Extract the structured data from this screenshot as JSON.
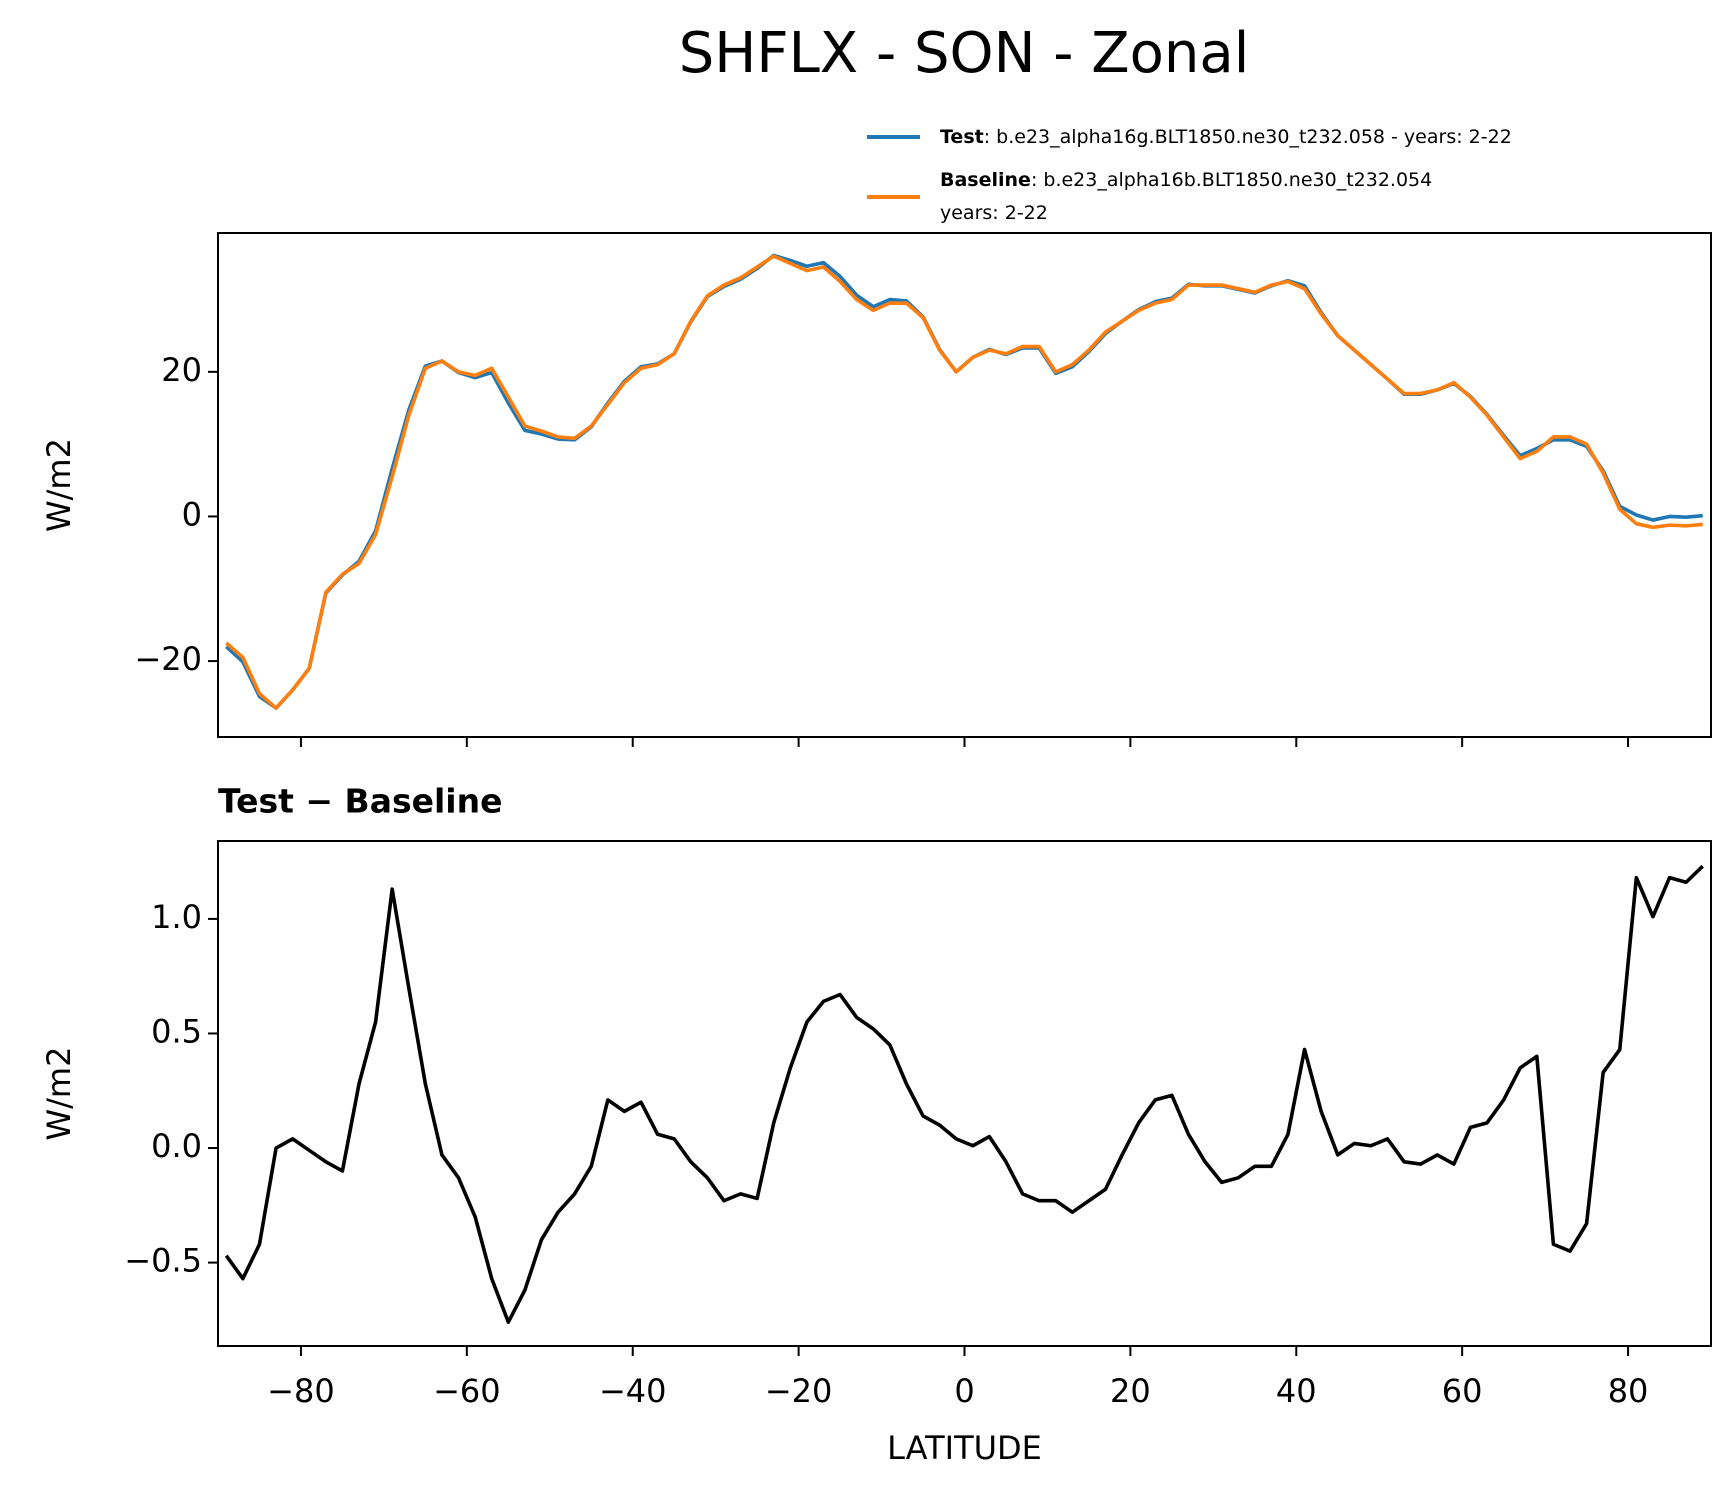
{
  "title": "SHFLX - SON - Zonal",
  "chart_data": [
    {
      "type": "line",
      "x": [
        -89,
        -87,
        -85,
        -83,
        -81,
        -79,
        -77,
        -75,
        -73,
        -71,
        -69,
        -67,
        -65,
        -63,
        -61,
        -59,
        -57,
        -55,
        -53,
        -51,
        -49,
        -47,
        -45,
        -43,
        -41,
        -39,
        -37,
        -35,
        -33,
        -31,
        -29,
        -27,
        -25,
        -23,
        -21,
        -19,
        -17,
        -15,
        -13,
        -11,
        -9,
        -7,
        -5,
        -3,
        -1,
        1,
        3,
        5,
        7,
        9,
        11,
        13,
        15,
        17,
        19,
        21,
        23,
        25,
        27,
        29,
        31,
        33,
        35,
        37,
        39,
        41,
        43,
        45,
        47,
        49,
        51,
        53,
        55,
        57,
        59,
        61,
        63,
        65,
        67,
        69,
        71,
        73,
        75,
        77,
        79,
        81,
        83,
        85,
        87,
        89
      ],
      "series": [
        {
          "name": "Test",
          "description": [
            ": b.e23_alpha16g.BLT1850.ne30_t232.058 - years: 2-22"
          ],
          "color": "#1f77b4",
          "values": [
            -18.0,
            -20.1,
            -24.9,
            -26.5,
            -24.0,
            -21.0,
            -10.6,
            -8.1,
            -6.2,
            -2.0,
            6.6,
            14.7,
            20.8,
            21.5,
            19.9,
            19.2,
            19.9,
            15.7,
            11.9,
            11.4,
            10.7,
            10.6,
            12.4,
            15.7,
            18.7,
            20.7,
            21.1,
            22.5,
            26.9,
            30.4,
            31.8,
            32.8,
            34.3,
            36.1,
            35.4,
            34.6,
            35.1,
            33.2,
            30.6,
            29.0,
            30.0,
            29.8,
            27.6,
            23.1,
            20.0,
            22.0,
            23.1,
            22.4,
            23.3,
            23.3,
            19.8,
            20.7,
            22.8,
            25.3,
            27.0,
            28.6,
            29.7,
            30.2,
            32.1,
            31.9,
            31.9,
            31.4,
            30.9,
            31.9,
            32.6,
            31.9,
            28.2,
            25.0,
            23.0,
            21.0,
            19.0,
            16.9,
            16.9,
            17.5,
            18.4,
            16.6,
            14.1,
            11.2,
            8.4,
            9.4,
            10.6,
            10.6,
            9.7,
            6.3,
            1.4,
            0.2,
            -0.5,
            0.0,
            -0.1,
            0.1
          ]
        },
        {
          "name": "Baseline",
          "description": [
            ": b.e23_alpha16b.BLT1850.ne30_t232.054",
            "years: 2-22"
          ],
          "color": "#ff7f0e",
          "values": [
            -17.5,
            -19.5,
            -24.5,
            -26.5,
            -24.0,
            -21.0,
            -10.5,
            -8.0,
            -6.5,
            -2.5,
            5.5,
            14.0,
            20.5,
            21.5,
            20.0,
            19.5,
            20.5,
            16.5,
            12.5,
            11.8,
            11.0,
            10.8,
            12.5,
            15.5,
            18.5,
            20.5,
            21.0,
            22.5,
            27.0,
            30.5,
            32.0,
            33.0,
            34.5,
            36.0,
            35.0,
            34.0,
            34.5,
            32.5,
            30.0,
            28.5,
            29.5,
            29.5,
            27.5,
            23.0,
            20.0,
            22.0,
            23.0,
            22.5,
            23.5,
            23.5,
            20.0,
            21.0,
            23.0,
            25.5,
            27.0,
            28.5,
            29.5,
            30.0,
            32.0,
            32.0,
            32.0,
            31.5,
            31.0,
            32.0,
            32.5,
            31.5,
            28.0,
            25.0,
            23.0,
            21.0,
            19.0,
            17.0,
            17.0,
            17.5,
            18.5,
            16.5,
            14.0,
            11.0,
            8.0,
            9.0,
            11.0,
            11.0,
            10.0,
            6.0,
            1.0,
            -1.0,
            -1.5,
            -1.2,
            -1.3,
            -1.1
          ]
        }
      ],
      "ylabel": "W/m2",
      "xlim": [
        -90,
        90
      ],
      "ylim": [
        -30.5,
        39.2
      ],
      "xticks": [
        -80,
        -60,
        -40,
        -20,
        0,
        20,
        40,
        60,
        80
      ],
      "show_xtick_labels": false,
      "yticks": [
        {
          "value": -20,
          "label": "−20"
        },
        0,
        20
      ],
      "legend": "upper right outside"
    },
    {
      "type": "line",
      "title": "Test − Baseline",
      "x": [
        -89,
        -87,
        -85,
        -83,
        -81,
        -79,
        -77,
        -75,
        -73,
        -71,
        -69,
        -67,
        -65,
        -63,
        -61,
        -59,
        -57,
        -55,
        -53,
        -51,
        -49,
        -47,
        -45,
        -43,
        -41,
        -39,
        -37,
        -35,
        -33,
        -31,
        -29,
        -27,
        -25,
        -23,
        -21,
        -19,
        -17,
        -15,
        -13,
        -11,
        -9,
        -7,
        -5,
        -3,
        -1,
        1,
        3,
        5,
        7,
        9,
        11,
        13,
        15,
        17,
        19,
        21,
        23,
        25,
        27,
        29,
        31,
        33,
        35,
        37,
        39,
        41,
        43,
        45,
        47,
        49,
        51,
        53,
        55,
        57,
        59,
        61,
        63,
        65,
        67,
        69,
        71,
        73,
        75,
        77,
        79,
        81,
        83,
        85,
        87,
        89
      ],
      "series": [
        {
          "color": "#000000",
          "values": [
            -0.47,
            -0.57,
            -0.42,
            0.0,
            0.04,
            -0.01,
            -0.06,
            -0.1,
            0.28,
            0.55,
            1.13,
            0.7,
            0.28,
            -0.03,
            -0.13,
            -0.3,
            -0.57,
            -0.76,
            -0.62,
            -0.4,
            -0.28,
            -0.2,
            -0.08,
            0.21,
            0.16,
            0.2,
            0.06,
            0.04,
            -0.06,
            -0.13,
            -0.23,
            -0.2,
            -0.22,
            0.11,
            0.35,
            0.55,
            0.64,
            0.67,
            0.57,
            0.52,
            0.45,
            0.28,
            0.14,
            0.1,
            0.04,
            0.01,
            0.05,
            -0.06,
            -0.2,
            -0.23,
            -0.23,
            -0.28,
            -0.23,
            -0.18,
            -0.03,
            0.11,
            0.21,
            0.23,
            0.06,
            -0.06,
            -0.15,
            -0.13,
            -0.08,
            -0.08,
            0.06,
            0.43,
            0.16,
            -0.03,
            0.02,
            0.01,
            0.04,
            -0.06,
            -0.07,
            -0.03,
            -0.07,
            0.09,
            0.11,
            0.21,
            0.35,
            0.4,
            -0.42,
            -0.45,
            -0.33,
            0.33,
            0.43,
            1.18,
            1.01,
            1.18,
            1.16,
            1.23
          ]
        }
      ],
      "xlabel": "LATITUDE",
      "ylabel": "W/m2",
      "xlim": [
        -90,
        90
      ],
      "ylim": [
        -0.864,
        1.34
      ],
      "xticks": [
        {
          "value": -80,
          "label": "−80"
        },
        {
          "value": -60,
          "label": "−60"
        },
        {
          "value": -40,
          "label": "−40"
        },
        {
          "value": -20,
          "label": "−20"
        },
        0,
        20,
        40,
        60,
        80
      ],
      "show_xtick_labels": true,
      "yticks": [
        {
          "value": -0.5,
          "label": "−0.5"
        },
        {
          "value": 0,
          "label": "0.0"
        },
        {
          "value": 0.5,
          "label": "0.5"
        },
        {
          "value": 1,
          "label": "1.0"
        }
      ]
    }
  ]
}
